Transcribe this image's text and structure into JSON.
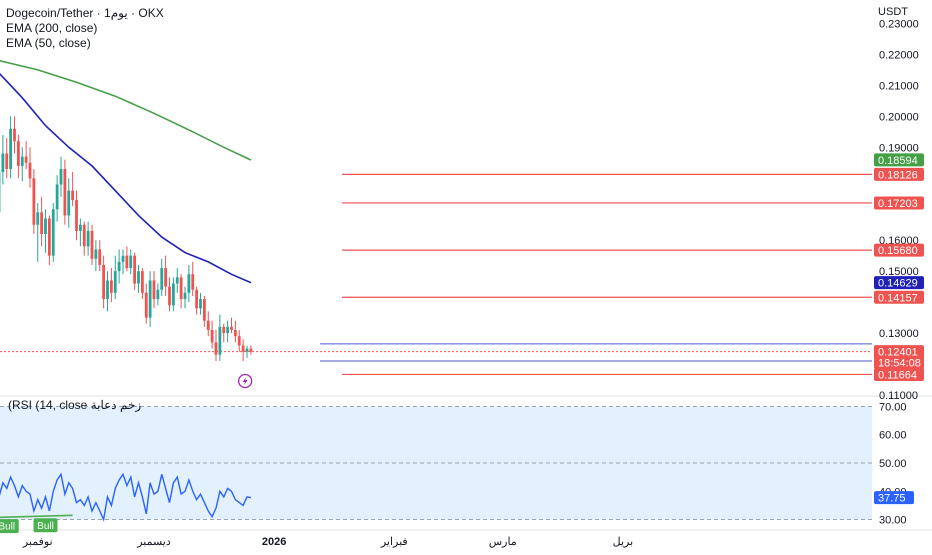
{
  "legend": {
    "symbol": "Dogecoin/Tether · 1يوم · OKX",
    "ema200": "EMA (200, close)",
    "ema50": "EMA (50, close)"
  },
  "currency": "USDT",
  "colors": {
    "up": "#26a69a",
    "down": "#ef5350",
    "ema200": "#43a047",
    "ema50": "#2121b8",
    "level": "#ef5350",
    "rsi": "#2962ff",
    "rsi_band": "#e3f0fd",
    "bull": "#4caf50",
    "axis_text": "#131722"
  },
  "chart_data": [
    {
      "type": "candlestick",
      "ylim": [
        0.11,
        0.235
      ],
      "y_ticks": [
        "0.23000",
        "0.22000",
        "0.21000",
        "0.20000",
        "0.19000",
        "0.16000",
        "0.15000",
        "0.13000",
        "0.11000"
      ],
      "x_ticks": [
        "نوفمبر",
        "ديسمبر",
        "2026",
        "فبراير",
        "مارس",
        "بريل"
      ],
      "x_tick_days": [
        2,
        32,
        63,
        94,
        122,
        153
      ],
      "last_day": 57,
      "candles": [
        [
          -28,
          0.186,
          0.192,
          0.183,
          0.188
        ],
        [
          -27,
          0.188,
          0.195,
          0.185,
          0.191
        ],
        [
          -26,
          0.191,
          0.198,
          0.188,
          0.194
        ],
        [
          -25,
          0.194,
          0.204,
          0.191,
          0.201
        ],
        [
          -24,
          0.201,
          0.207,
          0.194,
          0.197
        ],
        [
          -23,
          0.197,
          0.203,
          0.188,
          0.191
        ],
        [
          -22,
          0.191,
          0.2,
          0.187,
          0.196
        ],
        [
          -21,
          0.196,
          0.202,
          0.19,
          0.194
        ],
        [
          -20,
          0.194,
          0.204,
          0.191,
          0.201
        ],
        [
          -19,
          0.201,
          0.211,
          0.198,
          0.203
        ],
        [
          -18,
          0.203,
          0.207,
          0.192,
          0.195
        ],
        [
          -17,
          0.195,
          0.202,
          0.189,
          0.197
        ],
        [
          -16,
          0.197,
          0.199,
          0.184,
          0.186
        ],
        [
          -15,
          0.186,
          0.193,
          0.18,
          0.19
        ],
        [
          -14,
          0.19,
          0.197,
          0.183,
          0.186
        ],
        [
          -13,
          0.186,
          0.19,
          0.17,
          0.174
        ],
        [
          -12,
          0.174,
          0.188,
          0.17,
          0.184
        ],
        [
          -11,
          0.184,
          0.188,
          0.176,
          0.179
        ],
        [
          -10,
          0.179,
          0.186,
          0.172,
          0.175
        ],
        [
          -9,
          0.175,
          0.182,
          0.166,
          0.169
        ],
        [
          -8,
          0.169,
          0.186,
          0.16,
          0.182
        ],
        [
          -7,
          0.182,
          0.194,
          0.178,
          0.188
        ],
        [
          -6,
          0.188,
          0.193,
          0.18,
          0.183
        ],
        [
          -5,
          0.183,
          0.2,
          0.18,
          0.196
        ],
        [
          -4,
          0.196,
          0.2,
          0.188,
          0.192
        ],
        [
          -3,
          0.192,
          0.194,
          0.18,
          0.184
        ],
        [
          -2,
          0.184,
          0.19,
          0.179,
          0.187
        ],
        [
          -1,
          0.187,
          0.192,
          0.183,
          0.185
        ],
        [
          0,
          0.185,
          0.19,
          0.177,
          0.18
        ],
        [
          1,
          0.18,
          0.183,
          0.162,
          0.165
        ],
        [
          2,
          0.165,
          0.172,
          0.153,
          0.169
        ],
        [
          3,
          0.169,
          0.174,
          0.158,
          0.162
        ],
        [
          4,
          0.162,
          0.17,
          0.156,
          0.167
        ],
        [
          5,
          0.167,
          0.168,
          0.152,
          0.155
        ],
        [
          6,
          0.155,
          0.172,
          0.153,
          0.17
        ],
        [
          7,
          0.17,
          0.181,
          0.166,
          0.178
        ],
        [
          8,
          0.178,
          0.187,
          0.174,
          0.183
        ],
        [
          9,
          0.183,
          0.186,
          0.165,
          0.168
        ],
        [
          10,
          0.168,
          0.18,
          0.164,
          0.176
        ],
        [
          11,
          0.176,
          0.182,
          0.171,
          0.173
        ],
        [
          12,
          0.173,
          0.176,
          0.16,
          0.163
        ],
        [
          13,
          0.163,
          0.167,
          0.158,
          0.165
        ],
        [
          14,
          0.165,
          0.166,
          0.155,
          0.158
        ],
        [
          15,
          0.158,
          0.166,
          0.155,
          0.163
        ],
        [
          16,
          0.163,
          0.165,
          0.152,
          0.154
        ],
        [
          17,
          0.154,
          0.16,
          0.15,
          0.157
        ],
        [
          18,
          0.157,
          0.16,
          0.15,
          0.152
        ],
        [
          19,
          0.152,
          0.155,
          0.138,
          0.141
        ],
        [
          20,
          0.141,
          0.15,
          0.137,
          0.147
        ],
        [
          21,
          0.147,
          0.151,
          0.14,
          0.143
        ],
        [
          22,
          0.143,
          0.155,
          0.141,
          0.15
        ],
        [
          23,
          0.15,
          0.157,
          0.146,
          0.153
        ],
        [
          24,
          0.153,
          0.157,
          0.149,
          0.155
        ],
        [
          25,
          0.155,
          0.158,
          0.15,
          0.151
        ],
        [
          26,
          0.151,
          0.157,
          0.149,
          0.155
        ],
        [
          27,
          0.155,
          0.156,
          0.144,
          0.146
        ],
        [
          28,
          0.146,
          0.152,
          0.143,
          0.15
        ],
        [
          29,
          0.15,
          0.151,
          0.141,
          0.143
        ],
        [
          30,
          0.143,
          0.146,
          0.133,
          0.135
        ],
        [
          31,
          0.135,
          0.15,
          0.132,
          0.147
        ],
        [
          32,
          0.147,
          0.15,
          0.138,
          0.141
        ],
        [
          33,
          0.141,
          0.146,
          0.139,
          0.144
        ],
        [
          34,
          0.144,
          0.154,
          0.142,
          0.151
        ],
        [
          35,
          0.151,
          0.155,
          0.142,
          0.145
        ],
        [
          36,
          0.145,
          0.148,
          0.137,
          0.139
        ],
        [
          37,
          0.139,
          0.148,
          0.137,
          0.146
        ],
        [
          38,
          0.146,
          0.151,
          0.143,
          0.148
        ],
        [
          39,
          0.148,
          0.149,
          0.138,
          0.141
        ],
        [
          40,
          0.141,
          0.145,
          0.138,
          0.143
        ],
        [
          41,
          0.143,
          0.152,
          0.14,
          0.149
        ],
        [
          42,
          0.149,
          0.153,
          0.142,
          0.144
        ],
        [
          43,
          0.144,
          0.145,
          0.136,
          0.138
        ],
        [
          44,
          0.138,
          0.143,
          0.136,
          0.141
        ],
        [
          45,
          0.141,
          0.142,
          0.132,
          0.134
        ],
        [
          46,
          0.134,
          0.137,
          0.129,
          0.131
        ],
        [
          47,
          0.131,
          0.134,
          0.125,
          0.127
        ],
        [
          48,
          0.127,
          0.131,
          0.121,
          0.123
        ],
        [
          49,
          0.123,
          0.136,
          0.121,
          0.132
        ],
        [
          50,
          0.132,
          0.133,
          0.127,
          0.13
        ],
        [
          51,
          0.13,
          0.134,
          0.127,
          0.132
        ],
        [
          52,
          0.132,
          0.135,
          0.13,
          0.131
        ],
        [
          53,
          0.131,
          0.134,
          0.127,
          0.129
        ],
        [
          54,
          0.129,
          0.131,
          0.124,
          0.126
        ],
        [
          55,
          0.126,
          0.128,
          0.121,
          0.124
        ],
        [
          56,
          0.124,
          0.126,
          0.122,
          0.125
        ],
        [
          57,
          0.125,
          0.126,
          0.123,
          0.124
        ]
      ],
      "ema200": [
        [
          -28,
          0.2215
        ],
        [
          -18,
          0.22
        ],
        [
          -8,
          0.218
        ],
        [
          2,
          0.215
        ],
        [
          12,
          0.211
        ],
        [
          22,
          0.2065
        ],
        [
          32,
          0.201
        ],
        [
          42,
          0.195
        ],
        [
          50,
          0.19
        ],
        [
          57,
          0.1859
        ]
      ],
      "ema50": [
        [
          -28,
          0.23
        ],
        [
          -20,
          0.225
        ],
        [
          -14,
          0.221
        ],
        [
          -8,
          0.214
        ],
        [
          -2,
          0.206
        ],
        [
          4,
          0.197
        ],
        [
          10,
          0.19
        ],
        [
          16,
          0.184
        ],
        [
          22,
          0.176
        ],
        [
          28,
          0.168
        ],
        [
          34,
          0.161
        ],
        [
          40,
          0.156
        ],
        [
          46,
          0.153
        ],
        [
          52,
          0.149
        ],
        [
          57,
          0.1463
        ]
      ],
      "levels": [
        {
          "value": 0.18126,
          "label": "0.18126"
        },
        {
          "value": 0.17203,
          "label": "0.17203"
        },
        {
          "value": 0.1568,
          "label": "0.15680"
        },
        {
          "value": 0.14157,
          "label": "0.14157"
        },
        {
          "value": 0.11664,
          "label": "0.11664"
        }
      ],
      "range_lines": [
        0.1265,
        0.121
      ],
      "last_price": {
        "value": 0.12401,
        "label": "0.12401",
        "countdown": "18:54:08"
      },
      "ema200_last": {
        "value": 0.18594,
        "label": "0.18594"
      },
      "ema50_last": {
        "value": 0.14629,
        "label": "0.14629"
      },
      "icon_day": 55
    },
    {
      "type": "line",
      "title": "(RSI (14, close زخم دعابة",
      "ylim": [
        27,
        73
      ],
      "y_ticks": [
        "70.00",
        "60.00",
        "50.00",
        "40.00",
        "30.00"
      ],
      "band": [
        30,
        70
      ],
      "midline": 50,
      "last_value": {
        "value": 37.75,
        "label": "37.75"
      },
      "values": [
        [
          -28,
          35
        ],
        [
          -27,
          38
        ],
        [
          -26,
          41
        ],
        [
          -25,
          44
        ],
        [
          -24,
          40
        ],
        [
          -23,
          37
        ],
        [
          -22,
          42
        ],
        [
          -21,
          39
        ],
        [
          -20,
          43
        ],
        [
          -19,
          47
        ],
        [
          -18,
          43
        ],
        [
          -17,
          41
        ],
        [
          -16,
          37
        ],
        [
          -15,
          42
        ],
        [
          -14,
          39
        ],
        [
          -13,
          34
        ],
        [
          -12,
          40
        ],
        [
          -11,
          36
        ],
        [
          -10,
          34
        ],
        [
          -9,
          31
        ],
        [
          -8,
          38
        ],
        [
          -7,
          43
        ],
        [
          -6,
          41
        ],
        [
          -5,
          45
        ],
        [
          -4,
          42
        ],
        [
          -3,
          38
        ],
        [
          -2,
          42
        ],
        [
          -1,
          40
        ],
        [
          0,
          39
        ],
        [
          1,
          33
        ],
        [
          2,
          37
        ],
        [
          3,
          34
        ],
        [
          4,
          38
        ],
        [
          5,
          33
        ],
        [
          6,
          40
        ],
        [
          7,
          44
        ],
        [
          8,
          46
        ],
        [
          9,
          39
        ],
        [
          10,
          43
        ],
        [
          11,
          41
        ],
        [
          12,
          36
        ],
        [
          13,
          37
        ],
        [
          14,
          35
        ],
        [
          15,
          38
        ],
        [
          16,
          33
        ],
        [
          17,
          36
        ],
        [
          18,
          33
        ],
        [
          19,
          30
        ],
        [
          20,
          38
        ],
        [
          21,
          35
        ],
        [
          22,
          41
        ],
        [
          23,
          44
        ],
        [
          24,
          46
        ],
        [
          25,
          42
        ],
        [
          26,
          45
        ],
        [
          27,
          38
        ],
        [
          28,
          43
        ],
        [
          29,
          38
        ],
        [
          30,
          32
        ],
        [
          31,
          43
        ],
        [
          32,
          39
        ],
        [
          33,
          40
        ],
        [
          34,
          46
        ],
        [
          35,
          41
        ],
        [
          36,
          36
        ],
        [
          37,
          43
        ],
        [
          38,
          45
        ],
        [
          39,
          39
        ],
        [
          40,
          40
        ],
        [
          41,
          44
        ],
        [
          42,
          40
        ],
        [
          43,
          37
        ],
        [
          44,
          39
        ],
        [
          45,
          36
        ],
        [
          46,
          33
        ],
        [
          47,
          31
        ],
        [
          48,
          34
        ],
        [
          49,
          40
        ],
        [
          50,
          38
        ],
        [
          51,
          41
        ],
        [
          52,
          40
        ],
        [
          53,
          37
        ],
        [
          54,
          36
        ],
        [
          55,
          35
        ],
        [
          56,
          38
        ],
        [
          57,
          37.75
        ]
      ],
      "divergence": [
        [
          -29,
          30
        ],
        [
          11,
          31.5
        ]
      ],
      "bull_labels": [
        {
          "day": -29,
          "text": "ll",
          "value": 30
        },
        {
          "day": -6,
          "text": "Bull",
          "value": 31.2
        },
        {
          "day": 4,
          "text": "Bull",
          "value": 31.5
        }
      ]
    }
  ]
}
